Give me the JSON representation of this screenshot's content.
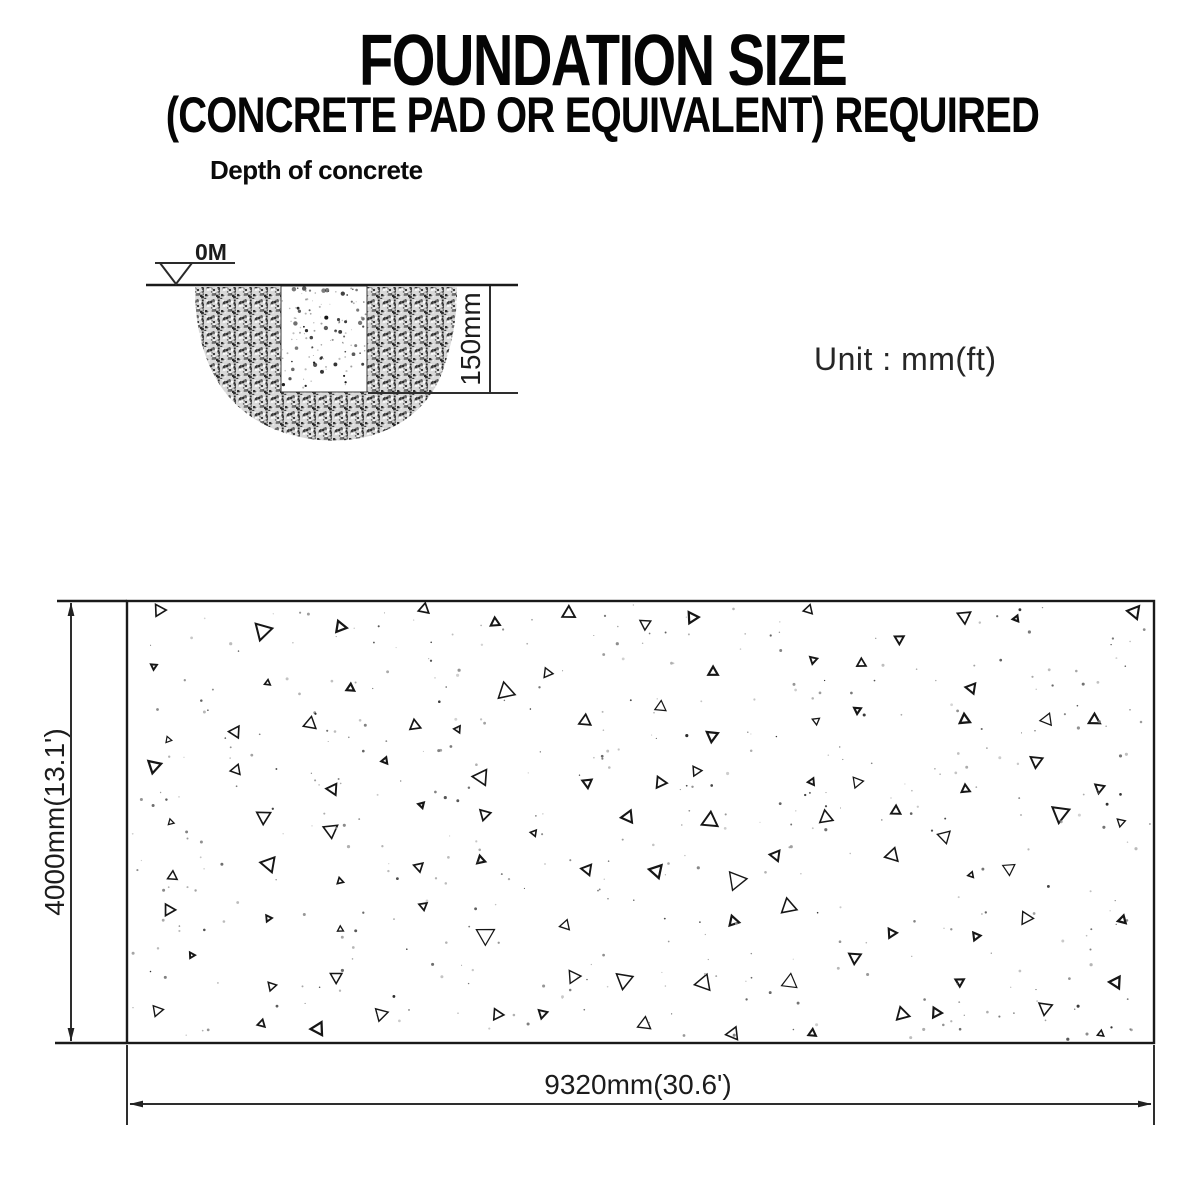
{
  "header": {
    "title": "FOUNDATION SIZE",
    "subtitle": "(CONCRETE PAD OR EQUIVALENT) REQUIRED"
  },
  "cross_section": {
    "label": "Depth of concrete",
    "ground_label": "0M",
    "depth_dimension": "150mm"
  },
  "unit_note": "Unit : mm(ft)",
  "plan_view": {
    "height_dimension": "4000mm(13.1')",
    "width_dimension": "9320mm(30.6')"
  },
  "colors": {
    "ink": "#1a1a1a",
    "dimension_line": "#2e2e2e",
    "soil_speckle": "#2f2f2f",
    "background": "#ffffff"
  }
}
